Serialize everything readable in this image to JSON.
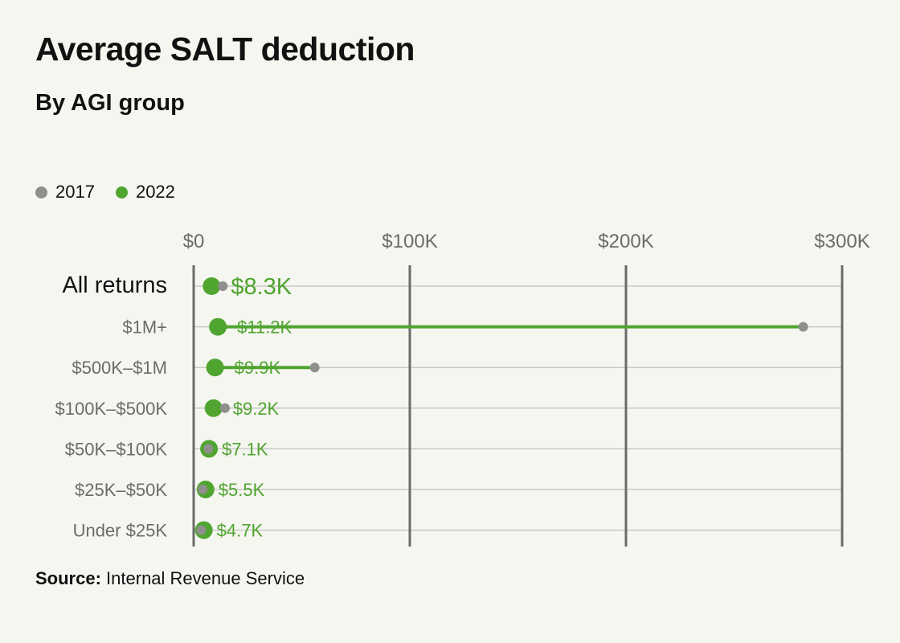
{
  "header": {
    "title": "Average SALT deduction",
    "subtitle": "By AGI group"
  },
  "legend": [
    {
      "label": "2017",
      "color": "#8f8f8d"
    },
    {
      "label": "2022",
      "color": "#4fa52f"
    }
  ],
  "footer": {
    "source_label": "Source:",
    "source_text": "Internal Revenue Service"
  },
  "colors": {
    "series_2017": "#8f8f8d",
    "series_2022": "#4fa52f",
    "axis": "#6b6b69",
    "gridline": "#c9c9c6",
    "label_muted": "#6b6b69",
    "label_strong": "#111111"
  },
  "chart_data": {
    "type": "dot-range",
    "title": "Average SALT deduction",
    "subtitle": "By AGI group",
    "xlim": [
      0,
      300000
    ],
    "x_ticks": [
      {
        "value": 0,
        "label": "$0"
      },
      {
        "value": 100000,
        "label": "$100K"
      },
      {
        "value": 200000,
        "label": "$200K"
      },
      {
        "value": 300000,
        "label": "$300K"
      }
    ],
    "categories": [
      "All returns",
      "$1M+",
      "$500K–$1M",
      "$100K–$500K",
      "$50K–$100K",
      "$25K–$50K",
      "Under $25K"
    ],
    "series": [
      {
        "name": "2017",
        "values": [
          13500,
          282000,
          56000,
          14500,
          6800,
          4200,
          3500
        ]
      },
      {
        "name": "2022",
        "values": [
          8300,
          11200,
          9900,
          9200,
          7100,
          5500,
          4700
        ]
      }
    ],
    "labels_2022": [
      "$8.3K",
      "$11.2K",
      "$9.9K",
      "$9.2K",
      "$7.1K",
      "$5.5K",
      "$4.7K"
    ],
    "highlight_category": "All returns"
  }
}
